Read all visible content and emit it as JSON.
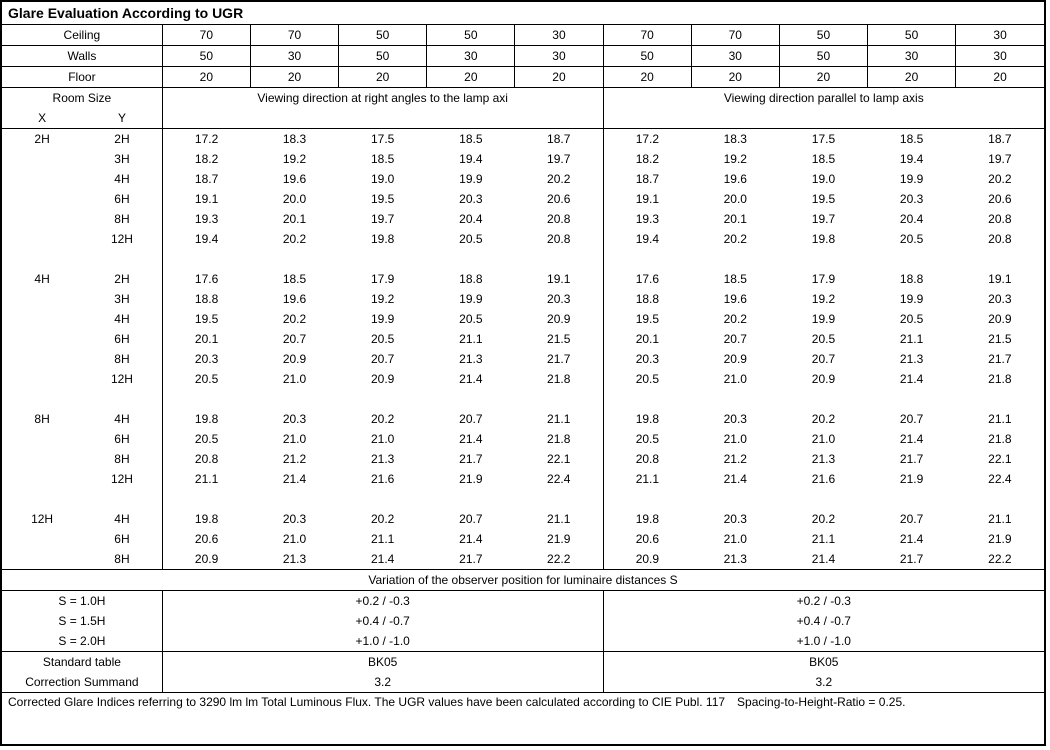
{
  "title": "Glare Evaluation According to UGR",
  "reflectance": {
    "labels": {
      "ceiling": "Ceiling",
      "walls": "Walls",
      "floor": "Floor"
    },
    "ceiling": [
      70,
      70,
      50,
      50,
      30,
      70,
      70,
      50,
      50,
      30
    ],
    "walls": [
      50,
      30,
      50,
      30,
      30,
      50,
      30,
      50,
      30,
      30
    ],
    "floor": [
      20,
      20,
      20,
      20,
      20,
      20,
      20,
      20,
      20,
      20
    ]
  },
  "room_size_label": "Room Size",
  "x_label": "X",
  "y_label": "Y",
  "view_left": "Viewing direction at right angles to the lamp axi",
  "view_right": "Viewing direction parallel to lamp axis",
  "groups": [
    {
      "x": "2H",
      "rows": [
        {
          "y": "2H",
          "v": [
            17.2,
            18.3,
            17.5,
            18.5,
            18.7
          ]
        },
        {
          "y": "3H",
          "v": [
            18.2,
            19.2,
            18.5,
            19.4,
            19.7
          ]
        },
        {
          "y": "4H",
          "v": [
            18.7,
            19.6,
            19.0,
            19.9,
            20.2
          ]
        },
        {
          "y": "6H",
          "v": [
            19.1,
            20.0,
            19.5,
            20.3,
            20.6
          ]
        },
        {
          "y": "8H",
          "v": [
            19.3,
            20.1,
            19.7,
            20.4,
            20.8
          ]
        },
        {
          "y": "12H",
          "v": [
            19.4,
            20.2,
            19.8,
            20.5,
            20.8
          ]
        }
      ]
    },
    {
      "x": "4H",
      "rows": [
        {
          "y": "2H",
          "v": [
            17.6,
            18.5,
            17.9,
            18.8,
            19.1
          ]
        },
        {
          "y": "3H",
          "v": [
            18.8,
            19.6,
            19.2,
            19.9,
            20.3
          ]
        },
        {
          "y": "4H",
          "v": [
            19.5,
            20.2,
            19.9,
            20.5,
            20.9
          ]
        },
        {
          "y": "6H",
          "v": [
            20.1,
            20.7,
            20.5,
            21.1,
            21.5
          ]
        },
        {
          "y": "8H",
          "v": [
            20.3,
            20.9,
            20.7,
            21.3,
            21.7
          ]
        },
        {
          "y": "12H",
          "v": [
            20.5,
            21.0,
            20.9,
            21.4,
            21.8
          ]
        }
      ]
    },
    {
      "x": "8H",
      "rows": [
        {
          "y": "4H",
          "v": [
            19.8,
            20.3,
            20.2,
            20.7,
            21.1
          ]
        },
        {
          "y": "6H",
          "v": [
            20.5,
            21.0,
            21.0,
            21.4,
            21.8
          ]
        },
        {
          "y": "8H",
          "v": [
            20.8,
            21.2,
            21.3,
            21.7,
            22.1
          ]
        },
        {
          "y": "12H",
          "v": [
            21.1,
            21.4,
            21.6,
            21.9,
            22.4
          ]
        }
      ]
    },
    {
      "x": "12H",
      "rows": [
        {
          "y": "4H",
          "v": [
            19.8,
            20.3,
            20.2,
            20.7,
            21.1
          ]
        },
        {
          "y": "6H",
          "v": [
            20.6,
            21.0,
            21.1,
            21.4,
            21.9
          ]
        },
        {
          "y": "8H",
          "v": [
            20.9,
            21.3,
            21.4,
            21.7,
            22.2
          ]
        }
      ]
    }
  ],
  "variation_label": "Variation of the observer position for luminaire distances S",
  "variation": [
    {
      "s": "S = 1.0H",
      "val": "+0.2 / -0.3"
    },
    {
      "s": "S = 1.5H",
      "val": "+0.4 / -0.7"
    },
    {
      "s": "S = 2.0H",
      "val": "+1.0 / -1.0"
    }
  ],
  "std_table_label": "Standard table",
  "std_table_value": "BK05",
  "corr_summand_label": "Correction Summand",
  "corr_summand_value": "3.2",
  "footnote": "Corrected Glare Indices referring to 3290 lm lm Total Luminous Flux. The UGR values have been calculated according to CIE Publ. 117 Spacing-to-Height-Ratio = 0.25."
}
